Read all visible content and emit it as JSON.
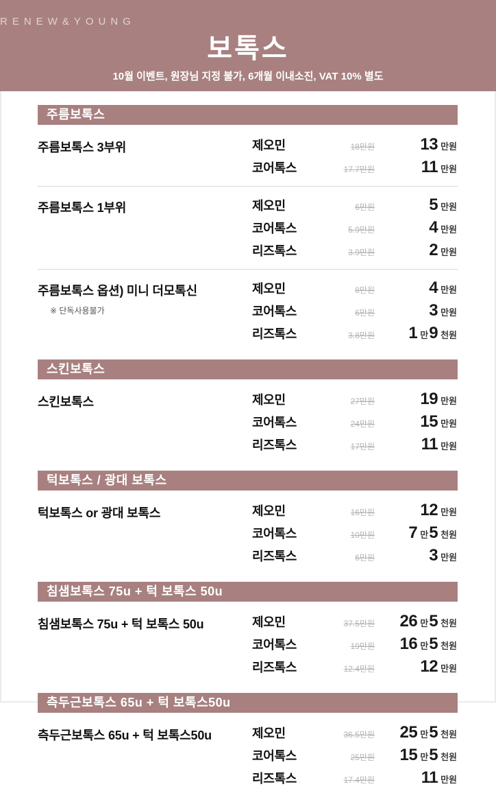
{
  "header": {
    "brand": "RENEW&YOUNG",
    "title": "보톡스",
    "subtitle": "10월 이벤트, 원장님 지정 불가, 6개월 이내소진, VAT 10% 별도"
  },
  "colors": {
    "accent": "#a88080",
    "strike_text": "#b7b2b2",
    "ink": "#1a1a1a"
  },
  "sections": [
    {
      "title": "주름보톡스",
      "items": [
        {
          "name": "주름보톡스 3부위",
          "prices": [
            {
              "brand": "제오민",
              "old": "18만원",
              "new": [
                [
                  "13",
                  "num"
                ],
                [
                  "만원",
                  "unit"
                ]
              ]
            },
            {
              "brand": "코어톡스",
              "old": "17.7만원",
              "new": [
                [
                  "11",
                  "num"
                ],
                [
                  "만원",
                  "unit"
                ]
              ]
            }
          ]
        },
        {
          "name": "주름보톡스 1부위",
          "prices": [
            {
              "brand": "제오민",
              "old": "6만원",
              "new": [
                [
                  "5",
                  "num"
                ],
                [
                  "만원",
                  "unit"
                ]
              ]
            },
            {
              "brand": "코어톡스",
              "old": "5.9만원",
              "new": [
                [
                  "4",
                  "num"
                ],
                [
                  "만원",
                  "unit"
                ]
              ]
            },
            {
              "brand": "리즈톡스",
              "old": "3.9만원",
              "new": [
                [
                  "2",
                  "num"
                ],
                [
                  "만원",
                  "unit"
                ]
              ]
            }
          ]
        },
        {
          "name": "주름보톡스 옵션) 미니 더모톡신",
          "note": "※ 단독사용불가",
          "prices": [
            {
              "brand": "제오민",
              "old": "8만원",
              "new": [
                [
                  "4",
                  "num"
                ],
                [
                  "만원",
                  "unit"
                ]
              ]
            },
            {
              "brand": "코어톡스",
              "old": "6만원",
              "new": [
                [
                  "3",
                  "num"
                ],
                [
                  "만원",
                  "unit"
                ]
              ]
            },
            {
              "brand": "리즈톡스",
              "old": "3.8만원",
              "new": [
                [
                  "1",
                  "num"
                ],
                [
                  "만",
                  "unit"
                ],
                [
                  "9",
                  "num"
                ],
                [
                  "천원",
                  "unit"
                ]
              ]
            }
          ]
        }
      ]
    },
    {
      "title": "스킨보톡스",
      "items": [
        {
          "name": "스킨보톡스",
          "prices": [
            {
              "brand": "제오민",
              "old": "27만원",
              "new": [
                [
                  "19",
                  "num"
                ],
                [
                  "만원",
                  "unit"
                ]
              ]
            },
            {
              "brand": "코어톡스",
              "old": "24만원",
              "new": [
                [
                  "15",
                  "num"
                ],
                [
                  "만원",
                  "unit"
                ]
              ]
            },
            {
              "brand": "리즈톡스",
              "old": "17만원",
              "new": [
                [
                  "11",
                  "num"
                ],
                [
                  "만원",
                  "unit"
                ]
              ]
            }
          ]
        }
      ]
    },
    {
      "title": "턱보톡스 / 광대 보톡스",
      "items": [
        {
          "name": "턱보톡스 or 광대 보톡스",
          "prices": [
            {
              "brand": "제오민",
              "old": "16만원",
              "new": [
                [
                  "12",
                  "num"
                ],
                [
                  "만원",
                  "unit"
                ]
              ]
            },
            {
              "brand": "코어톡스",
              "old": "10만원",
              "new": [
                [
                  "7",
                  "num"
                ],
                [
                  "만",
                  "unit"
                ],
                [
                  "5",
                  "num"
                ],
                [
                  "천원",
                  "unit"
                ]
              ]
            },
            {
              "brand": "리즈톡스",
              "old": "6만원",
              "new": [
                [
                  "3",
                  "num"
                ],
                [
                  "만원",
                  "unit"
                ]
              ]
            }
          ]
        }
      ]
    },
    {
      "title": "침샘보톡스 75u + 턱 보톡스 50u",
      "items": [
        {
          "name": "침샘보톡스 75u + 턱 보톡스 50u",
          "prices": [
            {
              "brand": "제오민",
              "old": "37.5만원",
              "new": [
                [
                  "26",
                  "num"
                ],
                [
                  "만",
                  "unit"
                ],
                [
                  "5",
                  "num"
                ],
                [
                  "천원",
                  "unit"
                ]
              ]
            },
            {
              "brand": "코어톡스",
              "old": "19만원",
              "new": [
                [
                  "16",
                  "num"
                ],
                [
                  "만",
                  "unit"
                ],
                [
                  "5",
                  "num"
                ],
                [
                  "천원",
                  "unit"
                ]
              ]
            },
            {
              "brand": "리즈톡스",
              "old": "12.4만원",
              "new": [
                [
                  "12",
                  "num"
                ],
                [
                  "만원",
                  "unit"
                ]
              ]
            }
          ]
        }
      ]
    },
    {
      "title": "측두근보톡스 65u + 턱 보톡스50u",
      "items": [
        {
          "name": "측두근보톡스 65u + 턱 보톡스50u",
          "prices": [
            {
              "brand": "제오민",
              "old": "36.5만원",
              "new": [
                [
                  "25",
                  "num"
                ],
                [
                  "만",
                  "unit"
                ],
                [
                  "5",
                  "num"
                ],
                [
                  "천원",
                  "unit"
                ]
              ]
            },
            {
              "brand": "코어톡스",
              "old": "25만원",
              "new": [
                [
                  "15",
                  "num"
                ],
                [
                  "만",
                  "unit"
                ],
                [
                  "5",
                  "num"
                ],
                [
                  "천원",
                  "unit"
                ]
              ]
            },
            {
              "brand": "리즈톡스",
              "old": "17.4만원",
              "new": [
                [
                  "11",
                  "num"
                ],
                [
                  "만원",
                  "unit"
                ]
              ]
            }
          ]
        }
      ]
    }
  ]
}
